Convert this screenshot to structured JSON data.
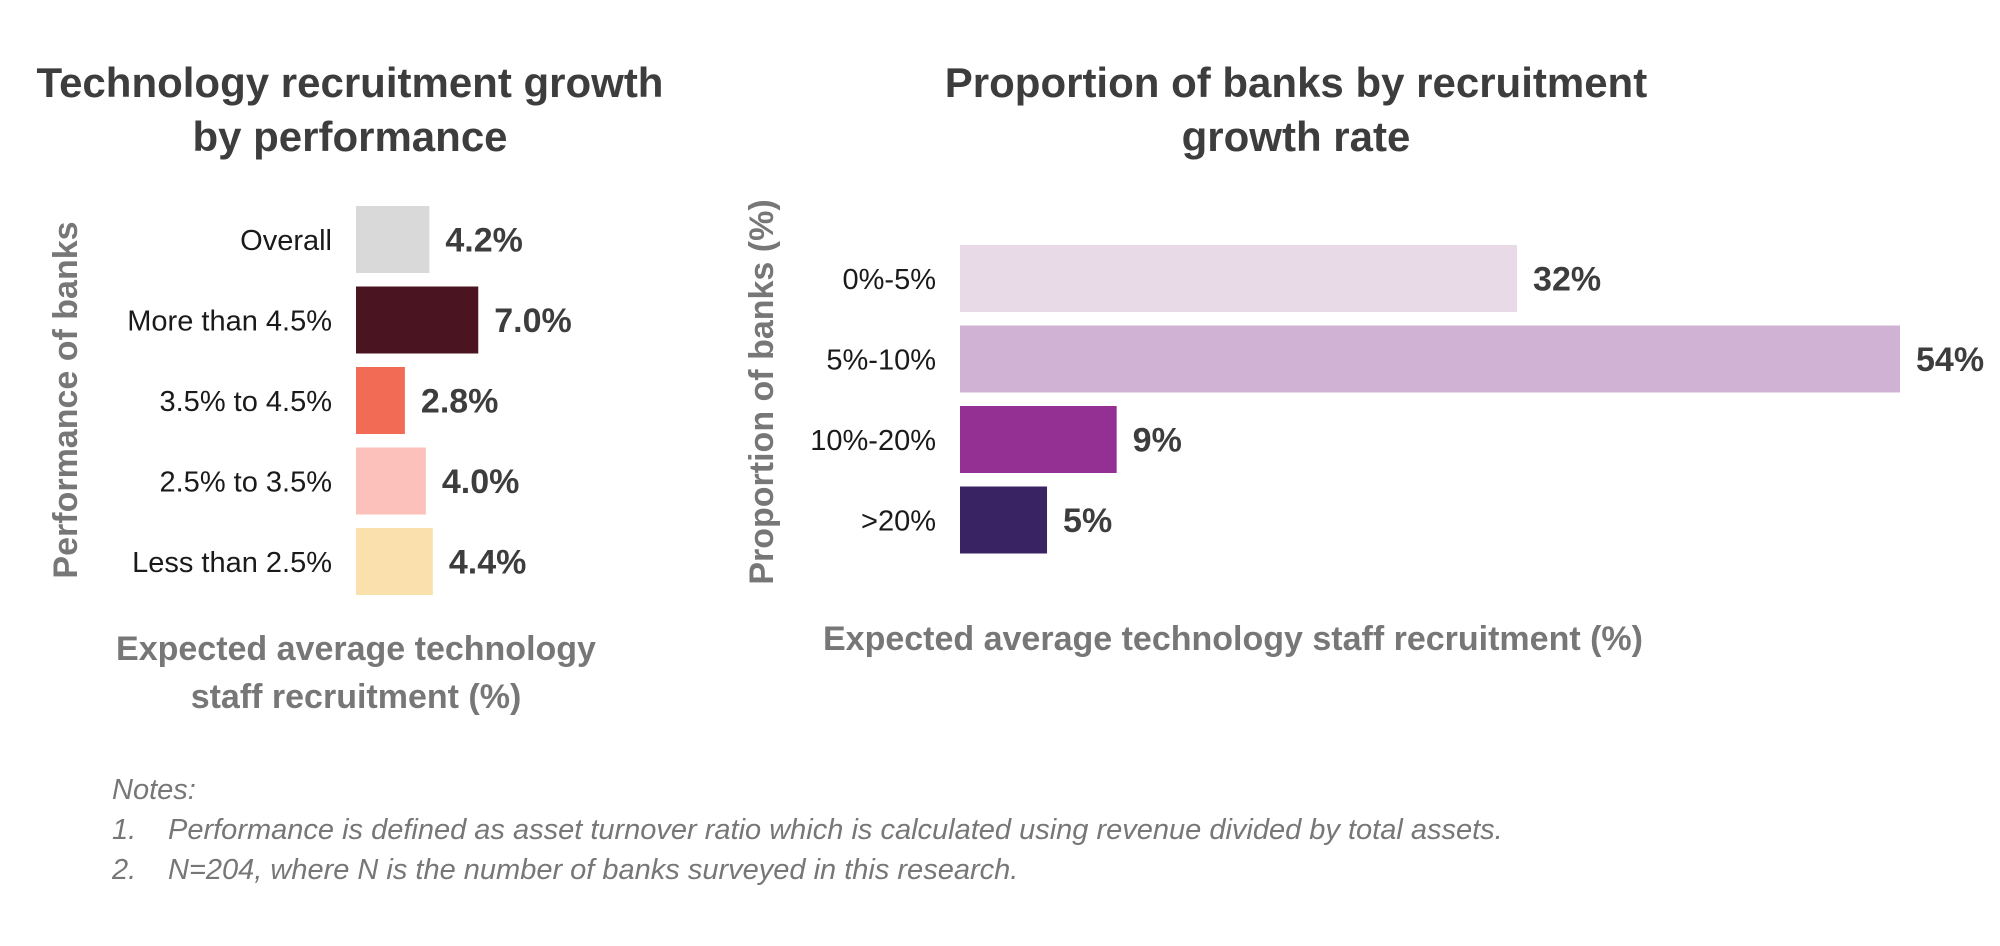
{
  "chart_data": [
    {
      "type": "bar",
      "orientation": "horizontal",
      "title": [
        "Technology recruitment growth",
        "by performance"
      ],
      "xlabel": [
        "Expected average technology",
        "staff recruitment (%)"
      ],
      "ylabel": "Performance of banks",
      "categories": [
        "Overall",
        "More than 4.5%",
        "3.5% to 4.5%",
        "2.5% to 3.5%",
        "Less than 2.5%"
      ],
      "values": [
        4.2,
        7.0,
        2.8,
        4.0,
        4.4
      ],
      "value_labels": [
        "4.2%",
        "7.0%",
        "2.8%",
        "4.0%",
        "4.4%"
      ],
      "colors": [
        "#d9d9d9",
        "#4a1420",
        "#f26b55",
        "#fcc1bb",
        "#f9e0ad"
      ],
      "xlim": [
        0,
        30
      ],
      "grid": false,
      "legend": "none"
    },
    {
      "type": "bar",
      "orientation": "horizontal",
      "title": [
        "Proportion of banks by recruitment",
        "growth rate"
      ],
      "xlabel": [
        "Expected average technology staff recruitment (%)"
      ],
      "ylabel": "Proportion of banks (%)",
      "categories": [
        "0%-5%",
        "5%-10%",
        "10%-20%",
        ">20%"
      ],
      "values": [
        32,
        54,
        9,
        5
      ],
      "value_labels": [
        "32%",
        "54%",
        "9%",
        "5%"
      ],
      "colors": [
        "#e8dae7",
        "#d0b2d4",
        "#942f93",
        "#3a2362"
      ],
      "xlim": [
        0,
        54
      ],
      "grid": false,
      "legend": "none"
    }
  ],
  "notes": {
    "heading": "Notes:",
    "items": [
      {
        "num": "1.",
        "text": "Performance is defined as asset turnover ratio which is calculated using revenue divided by total assets."
      },
      {
        "num": "2.",
        "text": "N=204, where N is the number of banks surveyed in this research."
      }
    ]
  },
  "colors": {
    "title": "#3d3d3d",
    "axis_label": "#777777",
    "category_label": "#1a1a1a",
    "value_label": "#3d3d3d"
  }
}
